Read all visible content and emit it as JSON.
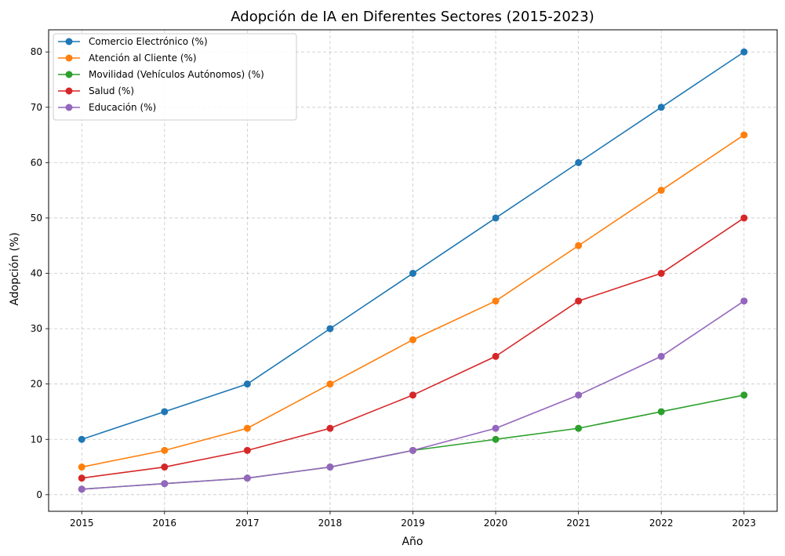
{
  "chart_data": {
    "type": "line",
    "title": "Adopción de IA en Diferentes Sectores (2015-2023)",
    "xlabel": "Año",
    "ylabel": "Adopción (%)",
    "x": [
      2015,
      2016,
      2017,
      2018,
      2019,
      2020,
      2021,
      2022,
      2023
    ],
    "x_ticks": [
      "2015",
      "2016",
      "2017",
      "2018",
      "2019",
      "2020",
      "2021",
      "2022",
      "2023"
    ],
    "y_ticks": [
      "0",
      "10",
      "20",
      "30",
      "40",
      "50",
      "60",
      "70",
      "80"
    ],
    "ylim": [
      -3,
      84
    ],
    "xlim": [
      2014.6,
      2023.4
    ],
    "grid": true,
    "legend_position": "top-left",
    "series": [
      {
        "name": "Comercio Electrónico (%)",
        "color": "#1f77b4",
        "values": [
          10,
          15,
          20,
          30,
          40,
          50,
          60,
          70,
          80
        ]
      },
      {
        "name": "Atención al Cliente (%)",
        "color": "#ff7f0e",
        "values": [
          5,
          8,
          12,
          20,
          28,
          35,
          45,
          55,
          65
        ]
      },
      {
        "name": "Movilidad (Vehículos Autónomos) (%)",
        "color": "#2ca02c",
        "values": [
          1,
          2,
          3,
          5,
          8,
          10,
          12,
          15,
          18
        ]
      },
      {
        "name": "Salud (%)",
        "color": "#d62728",
        "values": [
          3,
          5,
          8,
          12,
          18,
          25,
          35,
          40,
          50
        ]
      },
      {
        "name": "Educación (%)",
        "color": "#9467bd",
        "values": [
          1,
          2,
          3,
          5,
          8,
          12,
          18,
          25,
          35
        ]
      }
    ]
  }
}
